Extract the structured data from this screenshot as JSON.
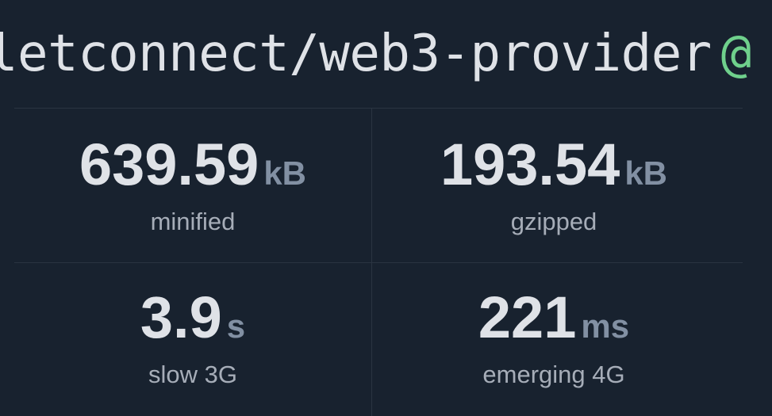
{
  "header": {
    "package_name": "letconnect/web3-provider",
    "version_separator": "@"
  },
  "stats": [
    {
      "value": "639.59",
      "unit": "kB",
      "label": "minified"
    },
    {
      "value": "193.54",
      "unit": "kB",
      "label": "gzipped"
    },
    {
      "value": "3.9",
      "unit": "s",
      "label": "slow 3G"
    },
    {
      "value": "221",
      "unit": "ms",
      "label": "emerging 4G"
    }
  ],
  "colors": {
    "background": "#18222f",
    "version_accent": "#6fd08c",
    "unit": "#8290a3"
  }
}
